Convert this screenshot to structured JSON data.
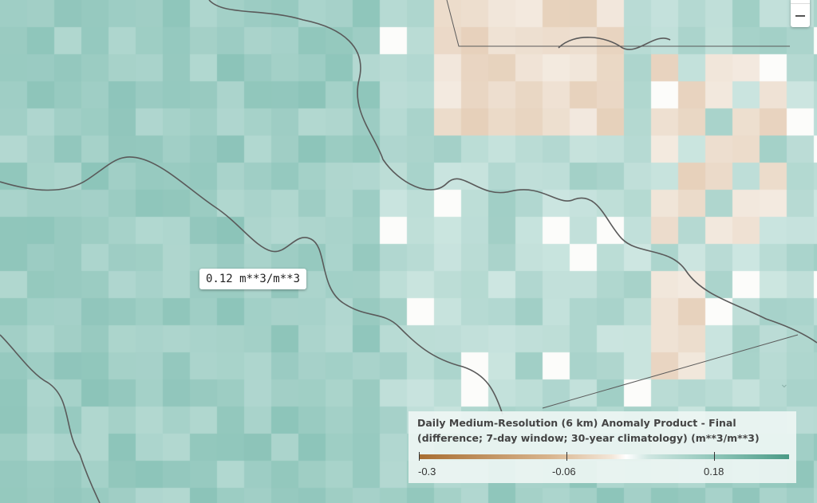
{
  "map": {
    "tooltip": "0.12 m**3/m**3",
    "colors": {
      "low": "#a86e32",
      "mid": "#ffffff",
      "high": "#4a9a86",
      "river": "#555555"
    }
  },
  "zoom_control": {
    "minus_icon": "minus-icon"
  },
  "legend": {
    "title_line1": "Daily Medium-Resolution (6 km) Anomaly Product - Final",
    "title_line2": "(difference; 7-day window; 30-year climatology) (m**3/m**3)",
    "ticks": [
      "-0.3",
      "-0.06",
      "0.18"
    ],
    "range": [
      -0.3,
      0.3
    ]
  }
}
